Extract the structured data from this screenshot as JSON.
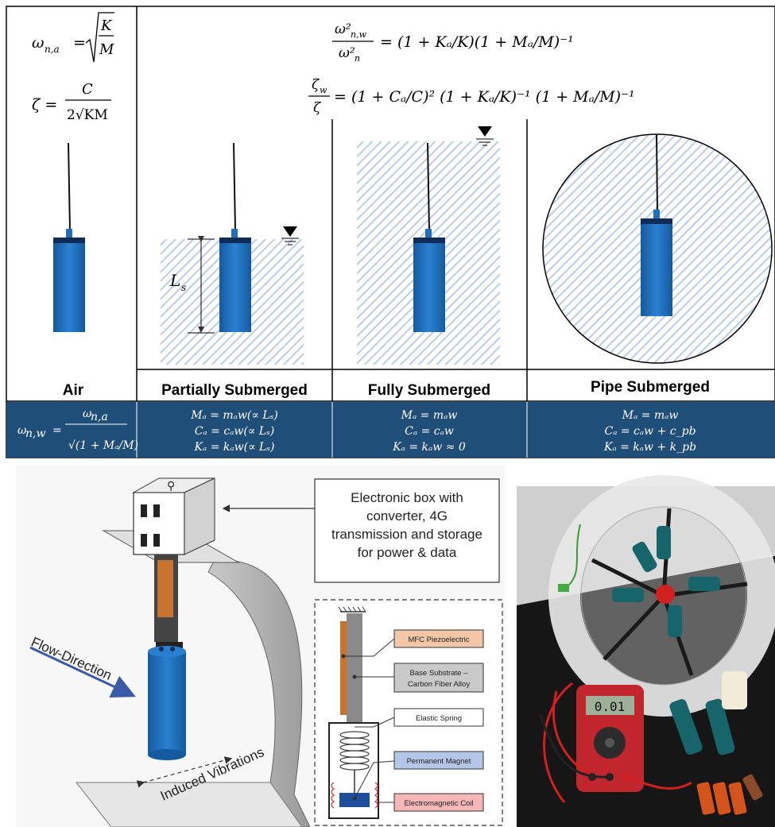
{
  "colors": {
    "band": "#1f4e79",
    "cylinder": "#1f6fbf",
    "cylinder_cap": "#0e2c57",
    "hatch": "#b8cde6",
    "legend_mfc": "#f2c6a6",
    "legend_substrate": "#c9c9c9",
    "legend_magnet": "#b4c6e7",
    "legend_coil": "#f4b6b6",
    "flow_arrow": "#3b5ba8"
  },
  "equations": {
    "air_omega": "ω",
    "air_omega_sub": "n,a",
    "air_omega_eq": "=",
    "air_K": "K",
    "air_M": "M",
    "air_zeta": "ζ =",
    "air_C": "C",
    "air_den": "2√KM",
    "top1_num": "ω²",
    "top1_num_sub": "n,w",
    "top1_den": "ω²",
    "top1_den_sub": "n",
    "top1_rhs": "= (1 + Kₐ/K)(1 + Mₐ/M)⁻¹",
    "top2_num": "ζ",
    "top2_num_sub": "w",
    "top2_den": "ζ",
    "top2_rhs": "= (1 + Cₐ/C)² (1 + Kₐ/K)⁻¹ (1 + Mₐ/M)⁻¹"
  },
  "panels": {
    "air": "Air",
    "partial": "Partially Submerged",
    "fully": "Fully Submerged",
    "pipe": "Pipe Submerged",
    "ls_label": "L",
    "ls_sub": "s"
  },
  "band": {
    "air_lhs": "ω",
    "air_lhs_sub": "n,w",
    "air_num": "ω",
    "air_num_sub": "n,a",
    "air_den": "√(1 + Mₐ/M)",
    "partial": [
      "Mₐ = mₐw(∝ Lₛ)",
      "Cₐ = cₐw(∝ Lₛ)",
      "Kₐ = kₐw(∝ Lₛ)"
    ],
    "fully": [
      "Mₐ = mₐw",
      "Cₐ = cₐw",
      "Kₐ = kₐw ≈ 0"
    ],
    "pipe": [
      "Mₐ = mₐw",
      "Cₐ = cₐw + c_pb",
      "Kₐ = kₐw + k_pb"
    ]
  },
  "bottom": {
    "electronic_box": [
      "Electronic box with",
      "converter, 4G",
      "transmission and storage",
      "for power & data"
    ],
    "flow_direction": "Flow-Direction",
    "induced_vibrations": "Induced Vibrations",
    "legend": {
      "mfc": "MFC Piezoelectric",
      "substrate_1": "Base Substrate –",
      "substrate_2": "Carbon Fiber Alloy",
      "spring": "Elastic Spring",
      "magnet": "Permanent Magnet",
      "coil": "Electromagnetic Coil"
    },
    "multimeter_reading": "0.01"
  }
}
